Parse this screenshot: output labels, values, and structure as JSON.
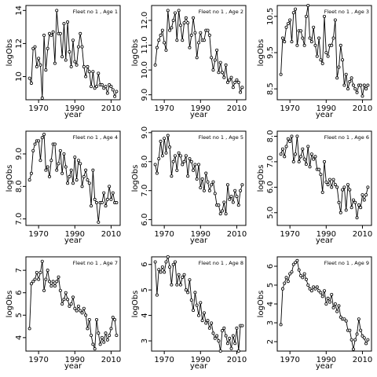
{
  "chart_data": [
    {
      "type": "line",
      "title": "Fleet no 1 , Age 1",
      "xlabel": "year",
      "ylabel": "logObs",
      "xlim": [
        1963,
        2015
      ],
      "ylim": [
        8.6,
        14.3
      ],
      "xticks": [
        1970,
        1990,
        2010
      ],
      "yticks": [
        10,
        12,
        14
      ],
      "x": [
        1965,
        1966,
        1967,
        1968,
        1969,
        1970,
        1971,
        1972,
        1973,
        1974,
        1975,
        1976,
        1977,
        1978,
        1979,
        1980,
        1981,
        1982,
        1983,
        1984,
        1985,
        1986,
        1987,
        1988,
        1989,
        1990,
        1991,
        1992,
        1993,
        1994,
        1995,
        1996,
        1997,
        1998,
        1999,
        2000,
        2001,
        2002,
        2003,
        2004,
        2005,
        2006,
        2007,
        2008,
        2009,
        2010,
        2011,
        2012,
        2013
      ],
      "y": [
        9.9,
        9.6,
        11.7,
        11.8,
        10.6,
        11.1,
        10.7,
        8.7,
        12.5,
        10.4,
        11.7,
        12.6,
        12.5,
        12.7,
        10.8,
        14.0,
        12.6,
        12.6,
        11.2,
        13.2,
        11.0,
        13.3,
        11.5,
        10.6,
        12.2,
        10.9,
        10.7,
        11.8,
        12.6,
        11.8,
        10.6,
        10.0,
        10.6,
        10.3,
        9.4,
        10.3,
        9.3,
        9.4,
        10.2,
        9.5,
        9.5,
        9.3,
        9.4,
        9.0,
        9.5,
        9.4,
        9.2,
        8.8,
        9.1
      ]
    },
    {
      "type": "line",
      "title": "Fleet no 1 , Age 2",
      "xlabel": "year",
      "ylabel": "logObs",
      "xlim": [
        1963,
        2015
      ],
      "ylim": [
        8.8,
        12.6
      ],
      "xticks": [
        1970,
        1990,
        2010
      ],
      "yticks": [
        9.0,
        10.0,
        11.0,
        12.0
      ],
      "x": [
        1965,
        1966,
        1967,
        1968,
        1969,
        1970,
        1971,
        1972,
        1973,
        1974,
        1975,
        1976,
        1977,
        1978,
        1979,
        1980,
        1981,
        1982,
        1983,
        1984,
        1985,
        1986,
        1987,
        1988,
        1989,
        1990,
        1991,
        1992,
        1993,
        1994,
        1995,
        1996,
        1997,
        1998,
        1999,
        2000,
        2001,
        2002,
        2003,
        2004,
        2005,
        2006,
        2007,
        2008,
        2009,
        2010,
        2011,
        2012,
        2013
      ],
      "y": [
        10.2,
        10.9,
        11.2,
        11.4,
        11.6,
        11.1,
        10.8,
        12.4,
        11.6,
        11.7,
        12.0,
        12.3,
        11.2,
        12.4,
        11.8,
        11.2,
        11.9,
        12.1,
        11.9,
        10.9,
        11.4,
        12.1,
        11.5,
        10.5,
        11.1,
        11.5,
        11.2,
        11.2,
        11.6,
        11.6,
        11.4,
        10.5,
        10.0,
        10.4,
        10.8,
        9.9,
        10.3,
        9.9,
        9.7,
        10.2,
        9.5,
        9.6,
        9.7,
        9.3,
        9.5,
        9.6,
        9.5,
        9.1,
        9.3
      ]
    },
    {
      "type": "line",
      "title": "Fleet no 1 , Age 3",
      "xlabel": "year",
      "ylabel": "logObs",
      "xlim": [
        1963,
        2015
      ],
      "ylim": [
        8.2,
        10.8
      ],
      "xticks": [
        1970,
        1990,
        2010
      ],
      "yticks": [
        8.5,
        9.5,
        10.5
      ],
      "x": [
        1965,
        1966,
        1967,
        1968,
        1969,
        1970,
        1971,
        1972,
        1973,
        1974,
        1975,
        1976,
        1977,
        1978,
        1979,
        1980,
        1981,
        1982,
        1983,
        1984,
        1985,
        1986,
        1987,
        1988,
        1989,
        1990,
        1991,
        1992,
        1993,
        1994,
        1995,
        1996,
        1997,
        1998,
        1999,
        2000,
        2001,
        2002,
        2003,
        2004,
        2005,
        2006,
        2007,
        2008,
        2009,
        2010,
        2011,
        2012,
        2013
      ],
      "y": [
        8.9,
        9.9,
        9.8,
        10.2,
        10.3,
        10.4,
        9.8,
        10.6,
        10.7,
        9.7,
        10.1,
        10.1,
        9.9,
        9.7,
        10.5,
        10.8,
        9.9,
        9.8,
        10.2,
        9.7,
        9.4,
        9.9,
        9.3,
        9.2,
        10.5,
        9.5,
        9.4,
        9.7,
        9.7,
        9.9,
        10.4,
        8.8,
        9.1,
        9.7,
        9.3,
        8.6,
        8.9,
        8.5,
        8.7,
        8.8,
        8.6,
        8.5,
        8.4,
        8.6,
        8.6,
        8.3,
        8.6,
        8.5,
        8.6
      ]
    },
    {
      "type": "line",
      "title": "Fleet no 1 , Age 4",
      "xlabel": "year",
      "ylabel": "logObs",
      "xlim": [
        1963,
        2015
      ],
      "ylim": [
        6.8,
        9.7
      ],
      "xticks": [
        1970,
        1990,
        2010
      ],
      "yticks": [
        7.0,
        8.0,
        9.0
      ],
      "x": [
        1965,
        1966,
        1967,
        1968,
        1969,
        1970,
        1971,
        1972,
        1973,
        1974,
        1975,
        1976,
        1977,
        1978,
        1979,
        1980,
        1981,
        1982,
        1983,
        1984,
        1985,
        1986,
        1987,
        1988,
        1989,
        1990,
        1991,
        1992,
        1993,
        1994,
        1995,
        1996,
        1997,
        1998,
        1999,
        2000,
        2001,
        2002,
        2003,
        2004,
        2005,
        2006,
        2007,
        2008,
        2009,
        2010,
        2011,
        2012,
        2013
      ],
      "y": [
        8.2,
        8.4,
        9.1,
        9.3,
        9.4,
        9.4,
        8.8,
        9.5,
        9.6,
        8.5,
        8.6,
        8.3,
        8.8,
        9.3,
        9.3,
        8.5,
        8.7,
        9.1,
        8.4,
        9.0,
        8.6,
        8.1,
        8.3,
        8.5,
        8.1,
        8.9,
        8.2,
        8.8,
        8.7,
        8.0,
        8.3,
        8.5,
        8.2,
        8.1,
        7.4,
        8.5,
        7.6,
        7.5,
        6.9,
        7.5,
        7.5,
        7.8,
        7.4,
        7.6,
        8.0,
        7.6,
        7.8,
        7.5,
        7.5
      ]
    },
    {
      "type": "line",
      "title": "Fleet no 1 , Age 5",
      "xlabel": "year",
      "ylabel": "logObs",
      "xlim": [
        1963,
        2015
      ],
      "ylim": [
        5.8,
        9.05
      ],
      "xticks": [
        1970,
        1990,
        2010
      ],
      "yticks": [
        6.0,
        7.0,
        8.0,
        9.0
      ],
      "x": [
        1965,
        1966,
        1967,
        1968,
        1969,
        1970,
        1971,
        1972,
        1973,
        1974,
        1975,
        1976,
        1977,
        1978,
        1979,
        1980,
        1981,
        1982,
        1983,
        1984,
        1985,
        1986,
        1987,
        1988,
        1989,
        1990,
        1991,
        1992,
        1993,
        1994,
        1995,
        1996,
        1997,
        1998,
        1999,
        2000,
        2001,
        2002,
        2003,
        2004,
        2005,
        2006,
        2007,
        2008,
        2009,
        2010,
        2011,
        2012,
        2013
      ],
      "y": [
        7.9,
        7.6,
        8.1,
        8.7,
        8.2,
        8.8,
        8.3,
        8.9,
        8.5,
        7.5,
        8.0,
        8.2,
        7.7,
        8.3,
        8.2,
        7.9,
        8.0,
        8.2,
        7.5,
        8.1,
        8.0,
        7.7,
        7.9,
        7.4,
        7.9,
        7.1,
        7.4,
        7.0,
        7.6,
        7.3,
        7.0,
        7.2,
        7.3,
        6.9,
        6.5,
        6.5,
        6.2,
        6.3,
        6.6,
        6.2,
        7.2,
        6.7,
        6.8,
        6.6,
        7.0,
        6.8,
        6.5,
        7.0,
        7.2
      ]
    },
    {
      "type": "line",
      "title": "Fleet no 1 , Age 6",
      "xlabel": "year",
      "ylabel": "logObs",
      "xlim": [
        1963,
        2015
      ],
      "ylim": [
        4.5,
        8.2
      ],
      "xticks": [
        1970,
        1990,
        2010
      ],
      "yticks": [
        5.0,
        6.0,
        7.0,
        8.0
      ],
      "x": [
        1965,
        1966,
        1967,
        1968,
        1969,
        1970,
        1971,
        1972,
        1973,
        1974,
        1975,
        1976,
        1977,
        1978,
        1979,
        1980,
        1981,
        1982,
        1983,
        1984,
        1985,
        1986,
        1987,
        1988,
        1989,
        1990,
        1991,
        1992,
        1993,
        1994,
        1995,
        1996,
        1997,
        1998,
        1999,
        2000,
        2001,
        2002,
        2003,
        2004,
        2005,
        2006,
        2007,
        2008,
        2009,
        2010,
        2011,
        2012,
        2013
      ],
      "y": [
        7.3,
        7.5,
        7.2,
        7.6,
        7.9,
        7.8,
        8.0,
        7.0,
        7.3,
        8.0,
        7.0,
        7.2,
        7.5,
        7.1,
        6.9,
        7.6,
        6.8,
        7.3,
        7.1,
        7.2,
        6.7,
        6.7,
        6.5,
        5.8,
        7.0,
        6.2,
        6.1,
        6.3,
        6.0,
        6.3,
        6.1,
        6.0,
        5.4,
        5.0,
        5.9,
        6.0,
        5.1,
        6.1,
        5.9,
        5.2,
        5.5,
        5.4,
        4.8,
        5.3,
        5.2,
        5.7,
        5.5,
        5.7,
        6.0
      ]
    },
    {
      "type": "line",
      "title": "Fleet no 1 , Age 7",
      "xlabel": "year",
      "ylabel": "logObs",
      "xlim": [
        1963,
        2015
      ],
      "ylim": [
        3.4,
        7.6
      ],
      "xticks": [
        1970,
        1990,
        2010
      ],
      "yticks": [
        4,
        5,
        6,
        7
      ],
      "x": [
        1965,
        1966,
        1967,
        1968,
        1969,
        1970,
        1971,
        1972,
        1973,
        1974,
        1975,
        1976,
        1977,
        1978,
        1979,
        1980,
        1981,
        1982,
        1983,
        1984,
        1985,
        1986,
        1987,
        1988,
        1989,
        1990,
        1991,
        1992,
        1993,
        1994,
        1995,
        1996,
        1997,
        1998,
        1999,
        2000,
        2001,
        2002,
        2003,
        2004,
        2005,
        2006,
        2007,
        2008,
        2009,
        2010,
        2011,
        2012,
        2013
      ],
      "y": [
        4.4,
        6.4,
        6.5,
        6.6,
        6.9,
        6.6,
        6.9,
        7.4,
        6.1,
        6.6,
        7.0,
        6.5,
        6.3,
        6.5,
        6.3,
        6.5,
        6.7,
        6.1,
        5.5,
        5.7,
        6.0,
        5.7,
        5.4,
        5.5,
        5.8,
        5.3,
        5.2,
        5.4,
        5.2,
        5.1,
        5.3,
        5.0,
        4.4,
        4.8,
        4.1,
        3.7,
        3.5,
        4.8,
        4.2,
        3.7,
        4.0,
        3.8,
        4.2,
        3.9,
        4.1,
        4.4,
        4.9,
        4.8,
        4.1
      ]
    },
    {
      "type": "line",
      "title": "Fleet no 1 , Age 8",
      "xlabel": "year",
      "ylabel": "logObs",
      "xlim": [
        1963,
        2015
      ],
      "ylim": [
        2.6,
        6.3
      ],
      "xticks": [
        1970,
        1990,
        2010
      ],
      "yticks": [
        3,
        4,
        5,
        6
      ],
      "x": [
        1965,
        1966,
        1967,
        1968,
        1969,
        1970,
        1971,
        1972,
        1973,
        1974,
        1975,
        1976,
        1977,
        1978,
        1979,
        1980,
        1981,
        1982,
        1983,
        1984,
        1985,
        1986,
        1987,
        1988,
        1989,
        1990,
        1991,
        1992,
        1993,
        1994,
        1995,
        1996,
        1997,
        1998,
        1999,
        2000,
        2001,
        2002,
        2003,
        2004,
        2005,
        2006,
        2007,
        2008,
        2009,
        2010,
        2011,
        2012,
        2013
      ],
      "y": [
        6.1,
        4.8,
        5.8,
        5.7,
        5.9,
        5.7,
        6.1,
        6.3,
        5.9,
        5.2,
        6.0,
        6.1,
        5.2,
        5.6,
        5.2,
        5.5,
        5.6,
        5.0,
        4.9,
        5.4,
        4.6,
        4.2,
        4.9,
        4.4,
        4.0,
        4.5,
        3.8,
        4.1,
        3.7,
        3.8,
        3.5,
        3.7,
        3.3,
        3.1,
        3.2,
        3.0,
        2.6,
        3.4,
        3.5,
        3.2,
        2.9,
        3.1,
        2.7,
        3.2,
        2.9,
        3.5,
        2.6,
        3.6,
        3.6
      ]
    },
    {
      "type": "line",
      "title": "Fleet no 1 , Age 9",
      "xlabel": "year",
      "ylabel": "logObs",
      "xlim": [
        1963,
        2015
      ],
      "ylim": [
        1.5,
        6.5
      ],
      "xticks": [
        1970,
        1990,
        2010
      ],
      "yticks": [
        2,
        3,
        4,
        5,
        6
      ],
      "x": [
        1965,
        1966,
        1967,
        1968,
        1969,
        1970,
        1971,
        1972,
        1973,
        1974,
        1975,
        1976,
        1977,
        1978,
        1979,
        1980,
        1981,
        1982,
        1983,
        1984,
        1985,
        1986,
        1987,
        1988,
        1989,
        1990,
        1991,
        1992,
        1993,
        1994,
        1995,
        1996,
        1997,
        1998,
        1999,
        2000,
        2001,
        2002,
        2003,
        2004,
        2005,
        2006,
        2007,
        2008,
        2009,
        2010,
        2011,
        2012,
        2013
      ],
      "y": [
        2.9,
        4.8,
        5.1,
        5.4,
        5.2,
        5.6,
        5.7,
        6.1,
        6.2,
        6.3,
        5.8,
        5.5,
        5.4,
        5.6,
        5.3,
        5.0,
        4.8,
        4.7,
        4.9,
        4.8,
        4.9,
        4.7,
        4.6,
        4.4,
        4.7,
        4.0,
        4.3,
        4.1,
        4.5,
        3.8,
        4.0,
        3.6,
        3.9,
        3.3,
        3.2,
        3.2,
        3.1,
        2.6,
        2.6,
        2.1,
        1.6,
        2.1,
        2.4,
        3.2,
        2.6,
        2.3,
        2.2,
        1.9,
        2.1
      ]
    }
  ]
}
